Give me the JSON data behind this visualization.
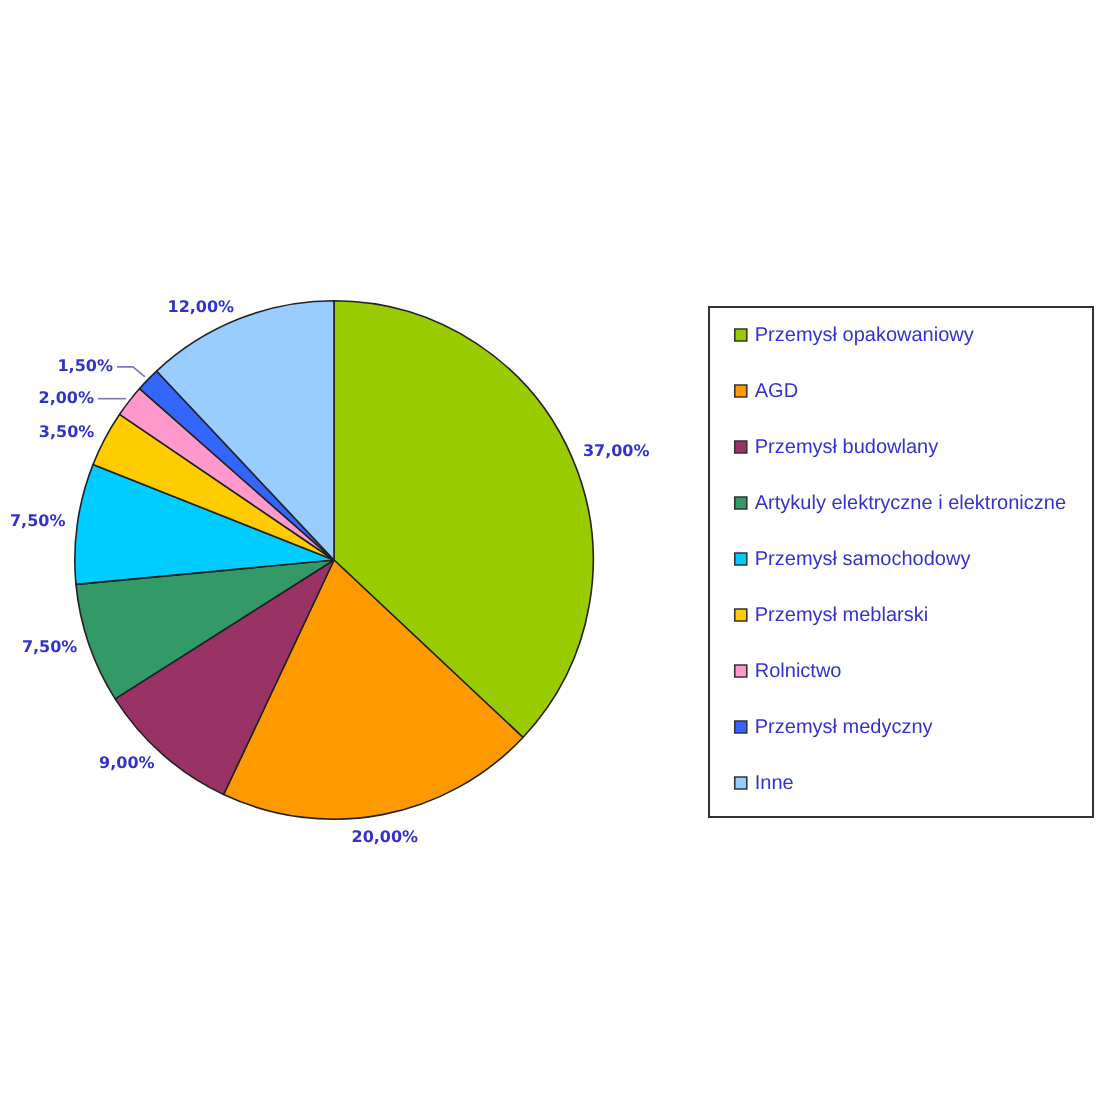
{
  "chart_data": {
    "type": "pie",
    "categories": [
      "Przemysł opakowaniowy",
      "AGD",
      "Przemysł budowlany",
      "Artykuly elektryczne i elektroniczne",
      "Przemysł samochodowy",
      "Przemysł meblarski",
      "Rolnictwo",
      "Przemysł medyczny",
      "Inne"
    ],
    "values": [
      37,
      20,
      9,
      7.5,
      7.5,
      3.5,
      2,
      1.5,
      12
    ],
    "value_labels": [
      "37,00%",
      "20,00%",
      "9,00%",
      "7,50%",
      "7,50%",
      "3,50%",
      "2,00%",
      "1,50%",
      "12,00%"
    ],
    "colors": [
      "#99cc00",
      "#ff9900",
      "#993366",
      "#339966",
      "#00ccff",
      "#ffcc00",
      "#ff99cc",
      "#3366ff",
      "#99ccff"
    ],
    "legend": "right"
  }
}
